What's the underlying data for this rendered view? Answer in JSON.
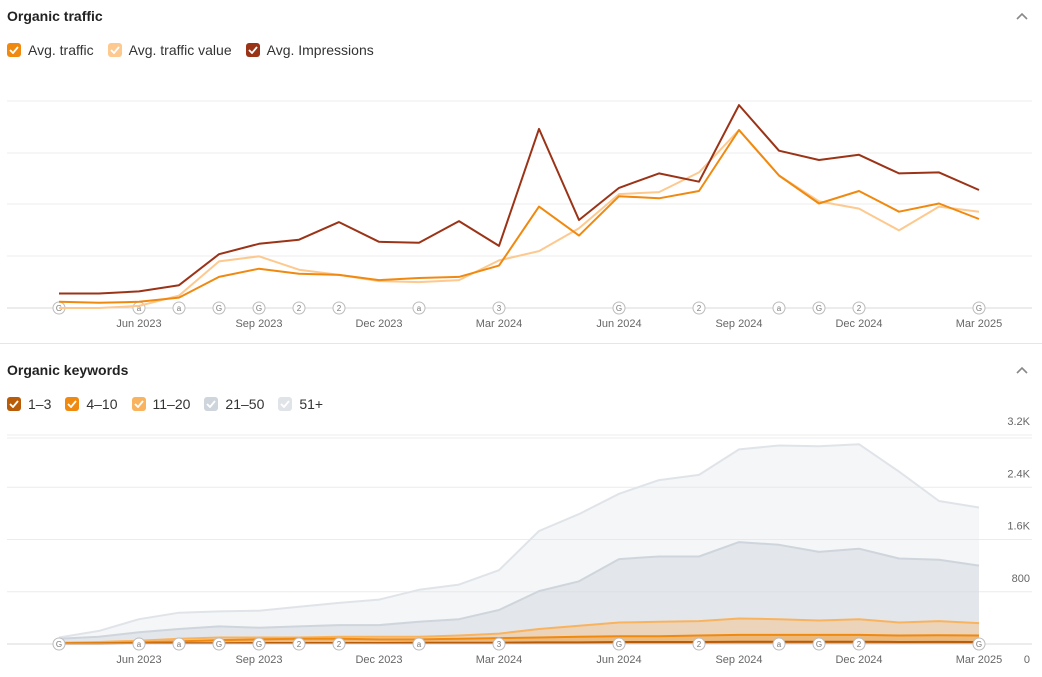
{
  "colors": {
    "traffic": "#f0890f",
    "traffic_value": "#fdc98e",
    "impressions": "#9b3317",
    "kw_1_3": "#b85c0a",
    "kw_4_10": "#f0890f",
    "kw_11_20": "#f9b35f",
    "kw_21_50": "#cfd5dc",
    "kw_51": "#e0e4e9"
  },
  "traffic_panel": {
    "title": "Organic traffic",
    "legend": [
      {
        "label": "Avg. traffic",
        "color": "#f0890f",
        "checked": true
      },
      {
        "label": "Avg. traffic value",
        "color": "#fdc98e",
        "checked": true
      },
      {
        "label": "Avg. Impressions",
        "color": "#9b3317",
        "checked": true
      }
    ]
  },
  "keywords_panel": {
    "title": "Organic keywords",
    "legend": [
      {
        "label": "1–3",
        "color": "#b85c0a",
        "checked": true
      },
      {
        "label": "4–10",
        "color": "#f0890f",
        "checked": true
      },
      {
        "label": "11–20",
        "color": "#f9b35f",
        "checked": true
      },
      {
        "label": "21–50",
        "color": "#cfd5dc",
        "checked": true
      },
      {
        "label": "51+",
        "color": "#e0e4e9",
        "checked": true
      }
    ]
  },
  "markers": [
    "G",
    "a",
    "a",
    "G",
    "G",
    "2",
    "2",
    "a",
    "3",
    "G",
    "2",
    "a",
    "G",
    "2",
    "G"
  ],
  "chart_data": [
    {
      "type": "line",
      "x_ticks": [
        "Jun 2023",
        "Sep 2023",
        "Dec 2023",
        "Mar 2024",
        "Jun 2024",
        "Sep 2024",
        "Dec 2024",
        "Mar 2025"
      ],
      "x": [
        "Apr 2023",
        "May 2023",
        "Jun 2023",
        "Jul 2023",
        "Aug 2023",
        "Sep 2023",
        "Oct 2023",
        "Nov 2023",
        "Dec 2023",
        "Jan 2024",
        "Feb 2024",
        "Mar 2024",
        "Apr 2024",
        "May 2024",
        "Jun 2024",
        "Jul 2024",
        "Aug 2024",
        "Sep 2024",
        "Oct 2024",
        "Nov 2024",
        "Dec 2024",
        "Jan 2025",
        "Feb 2025",
        "Mar 2025"
      ],
      "grid": true,
      "y_axis_labels": false,
      "series": [
        {
          "name": "Avg. traffic",
          "color": "#f0890f",
          "values": [
            6,
            5,
            6,
            10,
            30,
            38,
            33,
            32,
            27,
            29,
            30,
            41,
            98,
            70,
            108,
            106,
            113,
            172,
            128,
            101,
            113,
            93,
            101,
            86
          ]
        },
        {
          "name": "Avg. traffic value",
          "color": "#fdc98e",
          "values": [
            0,
            0,
            2,
            12,
            45,
            50,
            37,
            32,
            26,
            25,
            27,
            46,
            55,
            77,
            110,
            112,
            131,
            172,
            128,
            103,
            96,
            75,
            98,
            93
          ]
        },
        {
          "name": "Avg. Impressions",
          "color": "#9b3317",
          "values": [
            14,
            14,
            16,
            22,
            52,
            62,
            66,
            83,
            64,
            63,
            84,
            60,
            173,
            85,
            116,
            130,
            122,
            196,
            152,
            143,
            148,
            130,
            131,
            114
          ]
        }
      ]
    },
    {
      "type": "area",
      "stacked": false,
      "x_ticks": [
        "Jun 2023",
        "Sep 2023",
        "Dec 2023",
        "Mar 2024",
        "Jun 2024",
        "Sep 2024",
        "Dec 2024",
        "Mar 2025"
      ],
      "x": [
        "Apr 2023",
        "May 2023",
        "Jun 2023",
        "Jul 2023",
        "Aug 2023",
        "Sep 2023",
        "Oct 2023",
        "Nov 2023",
        "Dec 2023",
        "Jan 2024",
        "Feb 2024",
        "Mar 2024",
        "Apr 2024",
        "May 2024",
        "Jun 2024",
        "Jul 2024",
        "Aug 2024",
        "Sep 2024",
        "Oct 2024",
        "Nov 2024",
        "Dec 2024",
        "Jan 2025",
        "Feb 2025",
        "Mar 2025"
      ],
      "y_ticks": [
        "0",
        "800",
        "1.6K",
        "2.4K",
        "3.2K"
      ],
      "ylim": [
        0,
        3400
      ],
      "grid": true,
      "series": [
        {
          "name": "51+",
          "color": "#e0e4e9",
          "values": [
            100,
            200,
            380,
            480,
            500,
            510,
            570,
            630,
            680,
            830,
            910,
            1130,
            1730,
            1990,
            2300,
            2510,
            2590,
            2980,
            3040,
            3030,
            3060,
            2640,
            2190,
            2090
          ]
        },
        {
          "name": "21–50",
          "color": "#cfd5dc",
          "values": [
            80,
            110,
            180,
            230,
            270,
            250,
            270,
            290,
            290,
            340,
            380,
            520,
            810,
            960,
            1300,
            1340,
            1340,
            1560,
            1520,
            1410,
            1460,
            1310,
            1290,
            1200
          ]
        },
        {
          "name": "11–20",
          "color": "#f9b35f",
          "values": [
            20,
            30,
            50,
            80,
            100,
            100,
            100,
            110,
            110,
            110,
            130,
            160,
            230,
            280,
            330,
            340,
            350,
            390,
            380,
            360,
            380,
            330,
            350,
            320
          ]
        },
        {
          "name": "4–10",
          "color": "#f0890f",
          "values": [
            10,
            15,
            25,
            40,
            60,
            70,
            80,
            80,
            70,
            70,
            80,
            90,
            100,
            110,
            120,
            120,
            130,
            140,
            140,
            140,
            140,
            130,
            135,
            130
          ]
        },
        {
          "name": "1–3",
          "color": "#b85c0a",
          "values": [
            5,
            5,
            8,
            10,
            12,
            15,
            15,
            15,
            15,
            18,
            20,
            20,
            25,
            25,
            30,
            30,
            30,
            35,
            35,
            35,
            35,
            30,
            32,
            30
          ]
        }
      ]
    }
  ]
}
